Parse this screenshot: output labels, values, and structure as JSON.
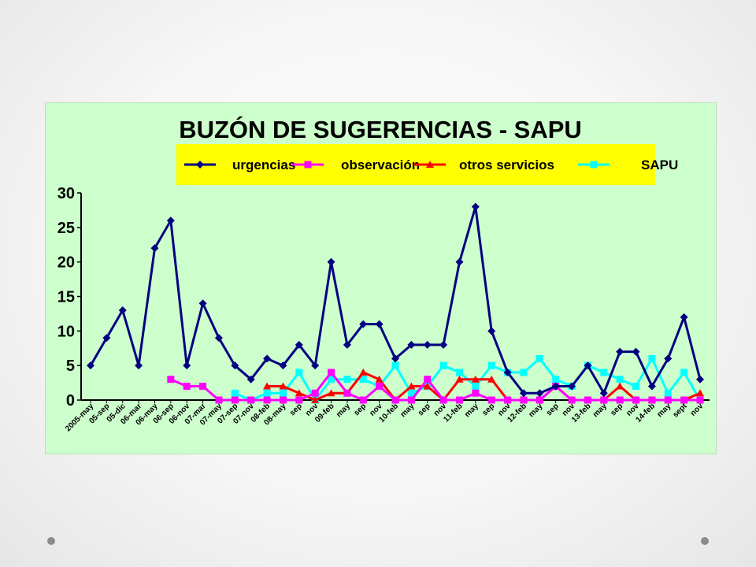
{
  "colors": {
    "panel_background": "#ccffcc",
    "legend_background": "#ffff00",
    "urgencias": "#000080",
    "observacion": "#ff00ff",
    "otros_servicios": "#ff0000",
    "sapu": "#00ffff"
  },
  "chart_data": {
    "type": "line",
    "title": "BUZÓN DE SUGERENCIAS - SAPU",
    "xlabel": "",
    "ylabel": "",
    "ylim": [
      0,
      30
    ],
    "yticks": [
      0,
      5,
      10,
      15,
      20,
      25,
      30
    ],
    "grid": false,
    "legend_position": "top",
    "categories": [
      "2005-may",
      "05-sep",
      "05-dic",
      "06-mar",
      "06-may",
      "06-sep",
      "06-nov",
      "07-mar",
      "07-may",
      "07-sep",
      "07-nov",
      "08-feb",
      "08-may",
      "sep",
      "nov",
      "09-feb",
      "may",
      "sep",
      "nov",
      "10-feb",
      "may",
      "sep",
      "nov",
      "11-feb",
      "may",
      "sep",
      "nov",
      "12-feb",
      "may",
      "sep",
      "nov",
      "13-feb",
      "may",
      "sep",
      "nov",
      "14-feb",
      "may",
      "sept",
      "nov"
    ],
    "series": [
      {
        "name": "urgencias",
        "color": "#000080",
        "marker": "diamond",
        "values": [
          5,
          9,
          13,
          5,
          22,
          26,
          5,
          14,
          9,
          5,
          3,
          6,
          5,
          8,
          5,
          20,
          8,
          11,
          11,
          6,
          8,
          8,
          8,
          20,
          28,
          10,
          4,
          1,
          1,
          2,
          2,
          5,
          1,
          7,
          7,
          2,
          6,
          12,
          3
        ]
      },
      {
        "name": "observación",
        "color": "#ff00ff",
        "marker": "square",
        "values": [
          null,
          null,
          null,
          null,
          null,
          3,
          2,
          2,
          0,
          0,
          0,
          0,
          0,
          0,
          1,
          4,
          1,
          0,
          2,
          0,
          0,
          3,
          0,
          0,
          1,
          0,
          0,
          0,
          0,
          2,
          0,
          0,
          0,
          0,
          0,
          0,
          0,
          0,
          0
        ]
      },
      {
        "name": "otros servicios",
        "color": "#ff0000",
        "marker": "triangle",
        "values": [
          null,
          null,
          null,
          null,
          null,
          null,
          null,
          null,
          null,
          null,
          null,
          2,
          2,
          1,
          0,
          1,
          1,
          4,
          3,
          0,
          2,
          2,
          0,
          3,
          3,
          3,
          0,
          0,
          0,
          2,
          0,
          0,
          0,
          2,
          0,
          0,
          0,
          0,
          1
        ]
      },
      {
        "name": "SAPU",
        "color": "#00ffff",
        "marker": "square",
        "values": [
          null,
          null,
          null,
          null,
          null,
          null,
          null,
          null,
          null,
          1,
          0,
          1,
          1,
          4,
          0,
          3,
          3,
          3,
          2,
          5,
          1,
          2,
          5,
          4,
          2,
          5,
          4,
          4,
          6,
          3,
          2,
          5,
          4,
          3,
          2,
          6,
          1,
          4,
          0
        ]
      }
    ]
  }
}
